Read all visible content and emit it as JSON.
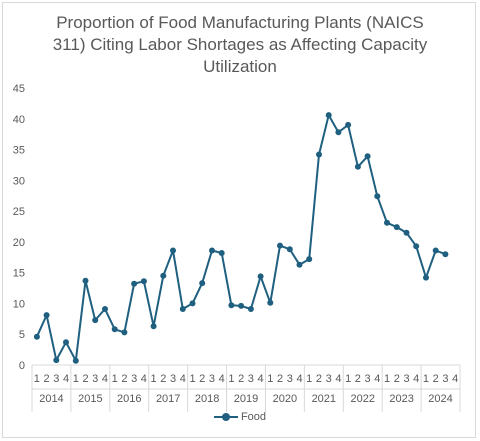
{
  "chart_data": {
    "type": "line",
    "title_lines": [
      "Proportion of Food Manufacturing Plants (NAICS",
      "311) Citing Labor Shortages as Affecting Capacity",
      "Utilization"
    ],
    "xlabel": "",
    "ylabel": "",
    "ylim": [
      0,
      45
    ],
    "yticks": [
      0,
      5,
      10,
      15,
      20,
      25,
      30,
      35,
      40,
      45
    ],
    "grid": false,
    "legend_position": "bottom",
    "quarter_labels": [
      "1",
      "2",
      "3",
      "4"
    ],
    "years": [
      "2014",
      "2015",
      "2016",
      "2017",
      "2018",
      "2019",
      "2020",
      "2021",
      "2022",
      "2023",
      "2024"
    ],
    "series": [
      {
        "name": "Food",
        "color": "#1f5f7f",
        "values": [
          4.6,
          8.1,
          0.8,
          3.7,
          0.7,
          13.7,
          7.3,
          9.1,
          5.8,
          5.3,
          13.2,
          13.6,
          6.3,
          14.5,
          18.6,
          9.1,
          10.0,
          13.3,
          18.6,
          18.2,
          9.7,
          9.6,
          9.1,
          14.4,
          10.1,
          19.4,
          18.8,
          16.3,
          17.2,
          34.2,
          40.6,
          37.8,
          39.0,
          32.2,
          33.9,
          27.4,
          23.1,
          22.4,
          21.5,
          19.3,
          14.2,
          18.6,
          18.0,
          null
        ]
      }
    ]
  }
}
